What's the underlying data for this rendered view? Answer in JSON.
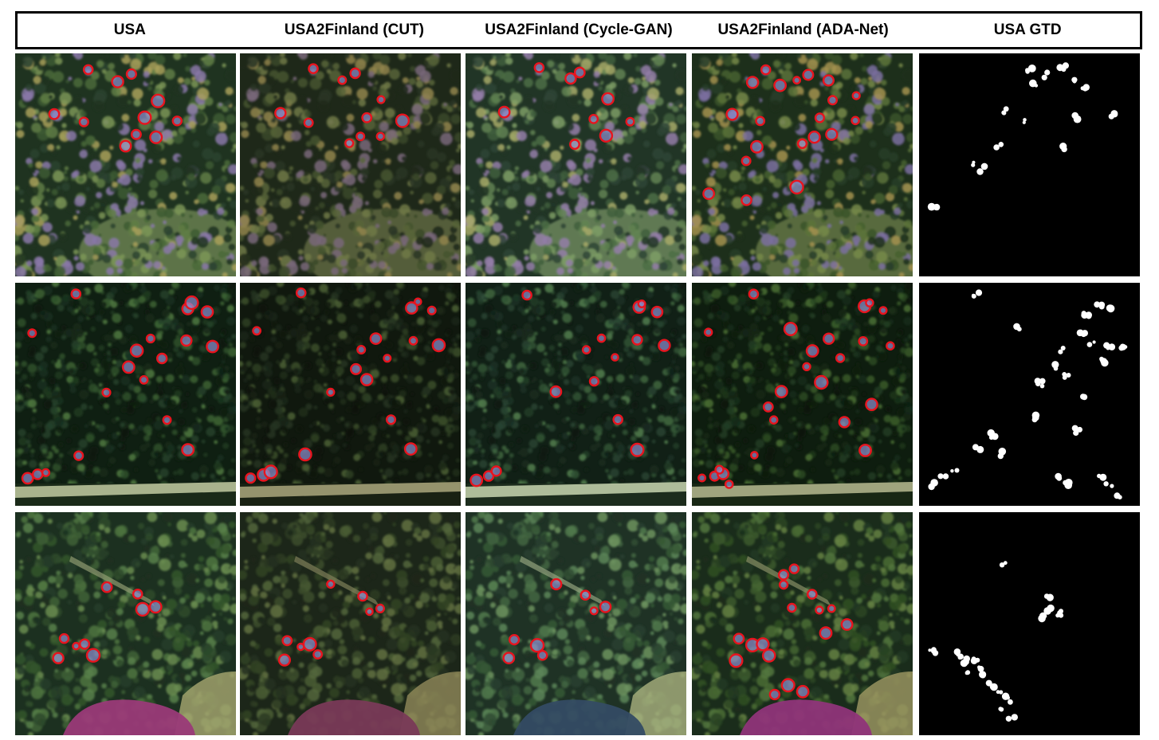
{
  "columns": [
    {
      "label": "USA"
    },
    {
      "label": "USA2Finland (CUT)"
    },
    {
      "label": "USA2Finland (Cycle-GAN)"
    },
    {
      "label": "USA2Finland (ADA-Net)"
    },
    {
      "label": "USA GTD"
    }
  ],
  "rows": [
    {
      "scene": "mixed-forest"
    },
    {
      "scene": "plantation-rows"
    },
    {
      "scene": "forest-with-pond"
    }
  ],
  "colors": {
    "detection": "#e8141e",
    "mask_background": "#000000",
    "mask_blob": "#ffffff"
  }
}
